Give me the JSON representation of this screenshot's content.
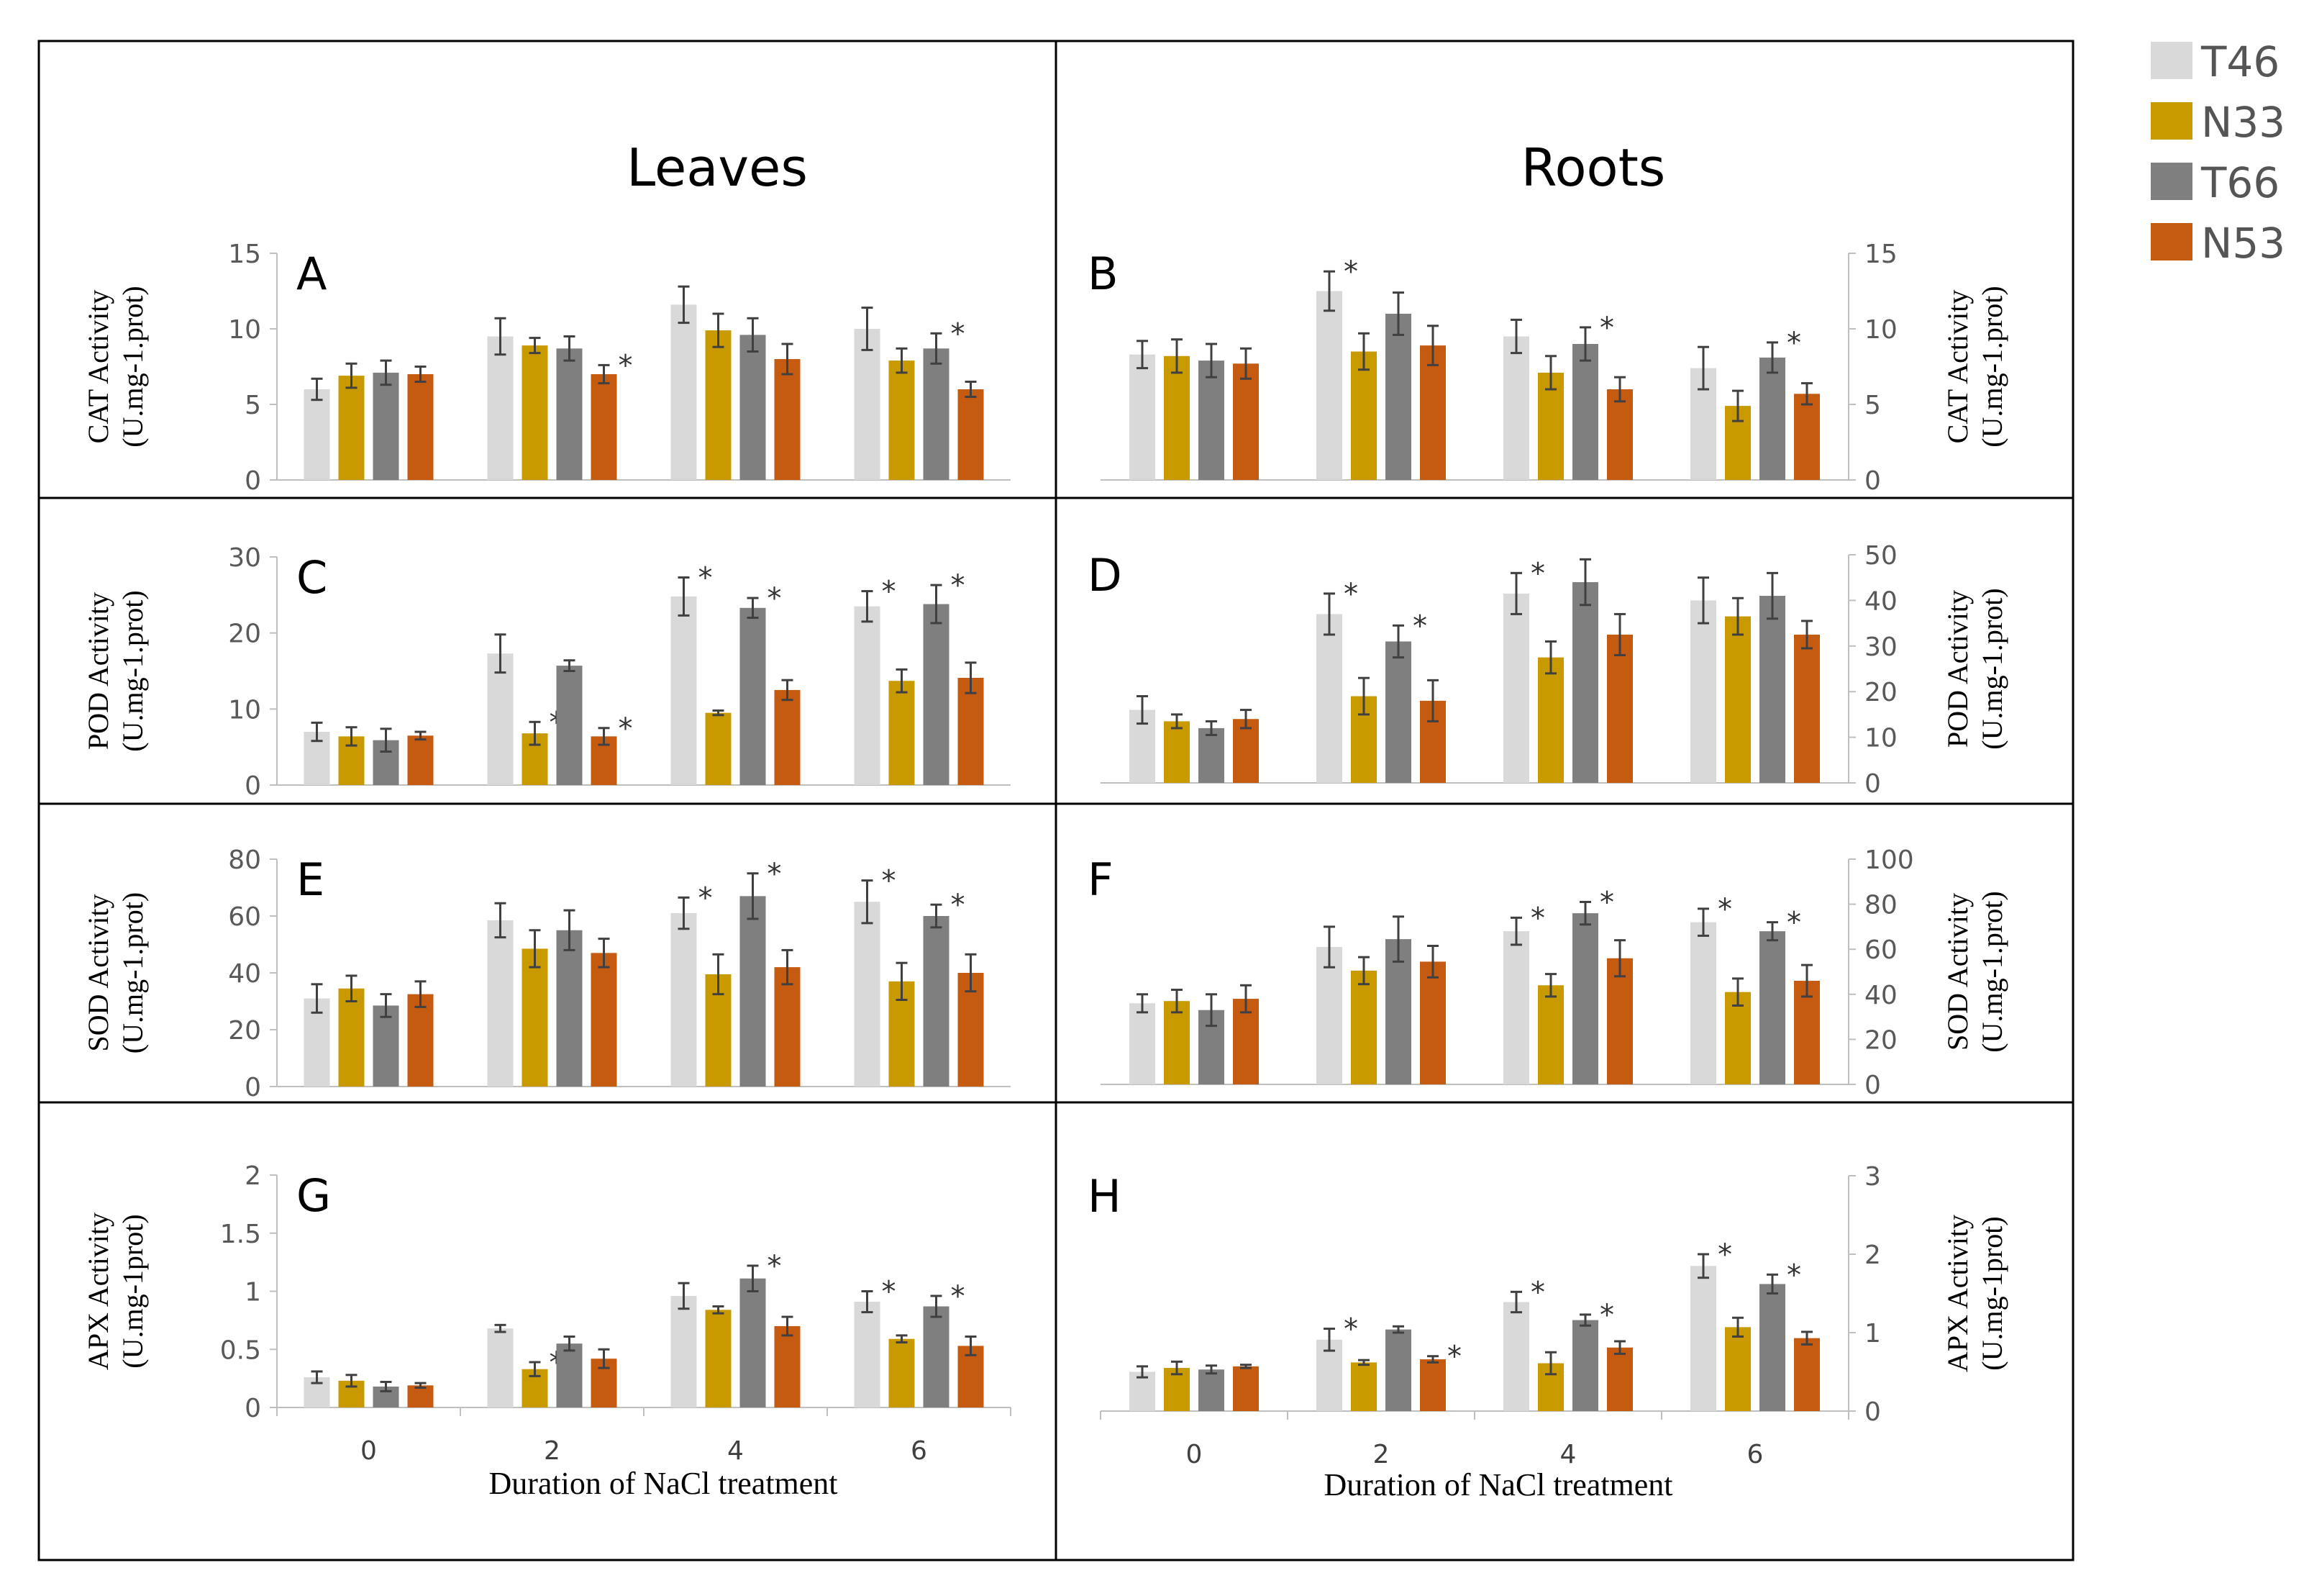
{
  "headers": {
    "left": "Leaves",
    "right": "Roots"
  },
  "legend": [
    {
      "name": "T46",
      "color": "#d9d9d9"
    },
    {
      "name": "N33",
      "color": "#c89a00"
    },
    {
      "name": "T66",
      "color": "#7f7f7f"
    },
    {
      "name": "N53",
      "color": "#c55a11"
    }
  ],
  "chart_data": [
    {
      "panel": "A",
      "type": "bar",
      "side": "left",
      "ylabel": [
        "CAT Activity",
        "(U.mg-1.prot)"
      ],
      "ylim": [
        0,
        15
      ],
      "yticks": [
        "0",
        "5",
        "10",
        "15"
      ],
      "categories": [
        "0",
        "2",
        "4",
        "6"
      ],
      "series": [
        {
          "name": "T46",
          "values": [
            6.0,
            9.5,
            11.6,
            10.0
          ],
          "errors": [
            0.7,
            1.2,
            1.2,
            1.4
          ]
        },
        {
          "name": "N33",
          "values": [
            6.9,
            8.9,
            9.9,
            7.9
          ],
          "errors": [
            0.8,
            0.5,
            1.1,
            0.8
          ]
        },
        {
          "name": "T66",
          "values": [
            7.1,
            8.7,
            9.6,
            8.7
          ],
          "errors": [
            0.8,
            0.8,
            1.1,
            1.0
          ]
        },
        {
          "name": "N53",
          "values": [
            7.0,
            7.0,
            8.0,
            6.0
          ],
          "errors": [
            0.5,
            0.6,
            1.0,
            0.5
          ]
        }
      ],
      "significance": [
        [],
        [
          "N53"
        ],
        [],
        [
          "T66"
        ]
      ],
      "show_xticks": false,
      "xlabel": ""
    },
    {
      "panel": "B",
      "type": "bar",
      "side": "right",
      "ylabel": [
        "CAT Activity",
        "(U.mg-1.prot)"
      ],
      "ylim": [
        0,
        15
      ],
      "yticks": [
        "0",
        "5",
        "10",
        "15"
      ],
      "categories": [
        "0",
        "2",
        "4",
        "6"
      ],
      "series": [
        {
          "name": "T46",
          "values": [
            8.3,
            12.5,
            9.5,
            7.4
          ],
          "errors": [
            0.9,
            1.3,
            1.1,
            1.4
          ]
        },
        {
          "name": "N33",
          "values": [
            8.2,
            8.5,
            7.1,
            4.9
          ],
          "errors": [
            1.1,
            1.2,
            1.1,
            1.0
          ]
        },
        {
          "name": "T66",
          "values": [
            7.9,
            11.0,
            9.0,
            8.1
          ],
          "errors": [
            1.1,
            1.4,
            1.1,
            1.0
          ]
        },
        {
          "name": "N53",
          "values": [
            7.7,
            8.9,
            6.0,
            5.7
          ],
          "errors": [
            1.0,
            1.3,
            0.8,
            0.7
          ]
        }
      ],
      "significance": [
        [],
        [
          "T46"
        ],
        [
          "T66"
        ],
        [
          "T66"
        ]
      ],
      "show_xticks": false,
      "xlabel": ""
    },
    {
      "panel": "C",
      "type": "bar",
      "side": "left",
      "ylabel": [
        "POD Activity",
        "(U.mg-1.prot)"
      ],
      "ylim": [
        0,
        30
      ],
      "yticks": [
        "0",
        "10",
        "20",
        "30"
      ],
      "categories": [
        "0",
        "2",
        "4",
        "6"
      ],
      "series": [
        {
          "name": "T46",
          "values": [
            7.0,
            17.3,
            24.8,
            23.5
          ],
          "errors": [
            1.2,
            2.5,
            2.5,
            2.0
          ]
        },
        {
          "name": "N33",
          "values": [
            6.4,
            6.8,
            9.5,
            13.7
          ],
          "errors": [
            1.2,
            1.5,
            0.3,
            1.5
          ]
        },
        {
          "name": "T66",
          "values": [
            5.9,
            15.7,
            23.3,
            23.8
          ],
          "errors": [
            1.5,
            0.7,
            1.3,
            2.5
          ]
        },
        {
          "name": "N53",
          "values": [
            6.5,
            6.4,
            12.5,
            14.1
          ],
          "errors": [
            0.5,
            1.1,
            1.3,
            2.0
          ]
        }
      ],
      "significance": [
        [],
        [
          "N33",
          "N53"
        ],
        [
          "T46",
          "T66"
        ],
        [
          "T46",
          "T66"
        ]
      ],
      "show_xticks": false,
      "xlabel": ""
    },
    {
      "panel": "D",
      "type": "bar",
      "side": "right",
      "ylabel": [
        "POD Activity",
        "(U.mg-1.prot)"
      ],
      "ylim": [
        0,
        50
      ],
      "yticks": [
        "0",
        "10",
        "20",
        "30",
        "40",
        "50"
      ],
      "categories": [
        "0",
        "2",
        "4",
        "6"
      ],
      "series": [
        {
          "name": "T46",
          "values": [
            16,
            37,
            41.5,
            40
          ],
          "errors": [
            3,
            4.5,
            4.5,
            5
          ]
        },
        {
          "name": "N33",
          "values": [
            13.5,
            19,
            27.5,
            36.5
          ],
          "errors": [
            1.5,
            4,
            3.5,
            4
          ]
        },
        {
          "name": "T66",
          "values": [
            12,
            31,
            44,
            41
          ],
          "errors": [
            1.5,
            3.5,
            5,
            5
          ]
        },
        {
          "name": "N53",
          "values": [
            14,
            18,
            32.5,
            32.5
          ],
          "errors": [
            2,
            4.5,
            4.5,
            3
          ]
        }
      ],
      "significance": [
        [],
        [
          "T46",
          "T66"
        ],
        [
          "T46"
        ],
        []
      ],
      "show_xticks": false,
      "xlabel": ""
    },
    {
      "panel": "E",
      "type": "bar",
      "side": "left",
      "ylabel": [
        "SOD Activity",
        "(U.mg-1.prot)"
      ],
      "ylim": [
        0,
        80
      ],
      "yticks": [
        "0",
        "20",
        "40",
        "60",
        "80"
      ],
      "categories": [
        "0",
        "2",
        "4",
        "6"
      ],
      "series": [
        {
          "name": "T46",
          "values": [
            31,
            58.5,
            61,
            65
          ],
          "errors": [
            5,
            6,
            5.5,
            7.5
          ]
        },
        {
          "name": "N33",
          "values": [
            34.5,
            48.5,
            39.5,
            37
          ],
          "errors": [
            4.5,
            6.5,
            7,
            6.5
          ]
        },
        {
          "name": "T66",
          "values": [
            28.5,
            55,
            67,
            60
          ],
          "errors": [
            4,
            7,
            8,
            4
          ]
        },
        {
          "name": "N53",
          "values": [
            32.5,
            47,
            42,
            40
          ],
          "errors": [
            4.5,
            5,
            6,
            6.5
          ]
        }
      ],
      "significance": [
        [],
        [],
        [
          "T46",
          "T66"
        ],
        [
          "T46",
          "T66"
        ]
      ],
      "show_xticks": false,
      "xlabel": ""
    },
    {
      "panel": "F",
      "type": "bar",
      "side": "right",
      "ylabel": [
        "SOD Activity",
        "(U.mg-1.prot)"
      ],
      "ylim": [
        0,
        100
      ],
      "yticks": [
        "0",
        "20",
        "40",
        "60",
        "80",
        "100"
      ],
      "categories": [
        "0",
        "2",
        "4",
        "6"
      ],
      "series": [
        {
          "name": "T46",
          "values": [
            36,
            61,
            68,
            72
          ],
          "errors": [
            4,
            9,
            6,
            6
          ]
        },
        {
          "name": "N33",
          "values": [
            37,
            50.5,
            44,
            41
          ],
          "errors": [
            5,
            6,
            5,
            6
          ]
        },
        {
          "name": "T66",
          "values": [
            33,
            64.5,
            76,
            68
          ],
          "errors": [
            7,
            10,
            5,
            4
          ]
        },
        {
          "name": "N53",
          "values": [
            38,
            54.5,
            56,
            46
          ],
          "errors": [
            6,
            7,
            8,
            7
          ]
        }
      ],
      "significance": [
        [],
        [],
        [
          "T46",
          "T66"
        ],
        [
          "T46",
          "T66"
        ]
      ],
      "show_xticks": false,
      "xlabel": ""
    },
    {
      "panel": "G",
      "type": "bar",
      "side": "left",
      "ylabel": [
        "APX Activity",
        "(U.mg-1prot)"
      ],
      "ylim": [
        0,
        2
      ],
      "yticks": [
        "0",
        "0.5",
        "1",
        "1.5",
        "2"
      ],
      "categories": [
        "0",
        "2",
        "4",
        "6"
      ],
      "series": [
        {
          "name": "T46",
          "values": [
            0.26,
            0.68,
            0.96,
            0.91
          ],
          "errors": [
            0.05,
            0.03,
            0.11,
            0.09
          ]
        },
        {
          "name": "N33",
          "values": [
            0.23,
            0.33,
            0.84,
            0.59
          ],
          "errors": [
            0.05,
            0.06,
            0.03,
            0.03
          ]
        },
        {
          "name": "T66",
          "values": [
            0.18,
            0.55,
            1.11,
            0.87
          ],
          "errors": [
            0.04,
            0.06,
            0.11,
            0.09
          ]
        },
        {
          "name": "N53",
          "values": [
            0.19,
            0.42,
            0.7,
            0.53
          ],
          "errors": [
            0.02,
            0.08,
            0.08,
            0.08
          ]
        }
      ],
      "significance": [
        [],
        [
          "N33"
        ],
        [
          "T66"
        ],
        [
          "T46",
          "T66"
        ]
      ],
      "show_xticks": true,
      "xlabel": "Duration of NaCl treatment"
    },
    {
      "panel": "H",
      "type": "bar",
      "side": "right",
      "ylabel": [
        "APX Activity",
        "(U.mg-1prot)"
      ],
      "ylim": [
        0,
        3
      ],
      "yticks": [
        "0",
        "1",
        "2",
        "3"
      ],
      "categories": [
        "0",
        "2",
        "4",
        "6"
      ],
      "series": [
        {
          "name": "T46",
          "values": [
            0.5,
            0.91,
            1.39,
            1.85
          ],
          "errors": [
            0.07,
            0.14,
            0.13,
            0.15
          ]
        },
        {
          "name": "N33",
          "values": [
            0.55,
            0.62,
            0.61,
            1.07
          ],
          "errors": [
            0.08,
            0.03,
            0.14,
            0.12
          ]
        },
        {
          "name": "T66",
          "values": [
            0.53,
            1.04,
            1.16,
            1.62
          ],
          "errors": [
            0.05,
            0.04,
            0.07,
            0.12
          ]
        },
        {
          "name": "N53",
          "values": [
            0.57,
            0.66,
            0.81,
            0.93
          ],
          "errors": [
            0.02,
            0.04,
            0.08,
            0.08
          ]
        }
      ],
      "significance": [
        [],
        [
          "T46",
          "N53"
        ],
        [
          "T46",
          "T66"
        ],
        [
          "T46",
          "T66"
        ]
      ],
      "show_xticks": true,
      "xlabel": "Duration of NaCl treatment"
    }
  ]
}
